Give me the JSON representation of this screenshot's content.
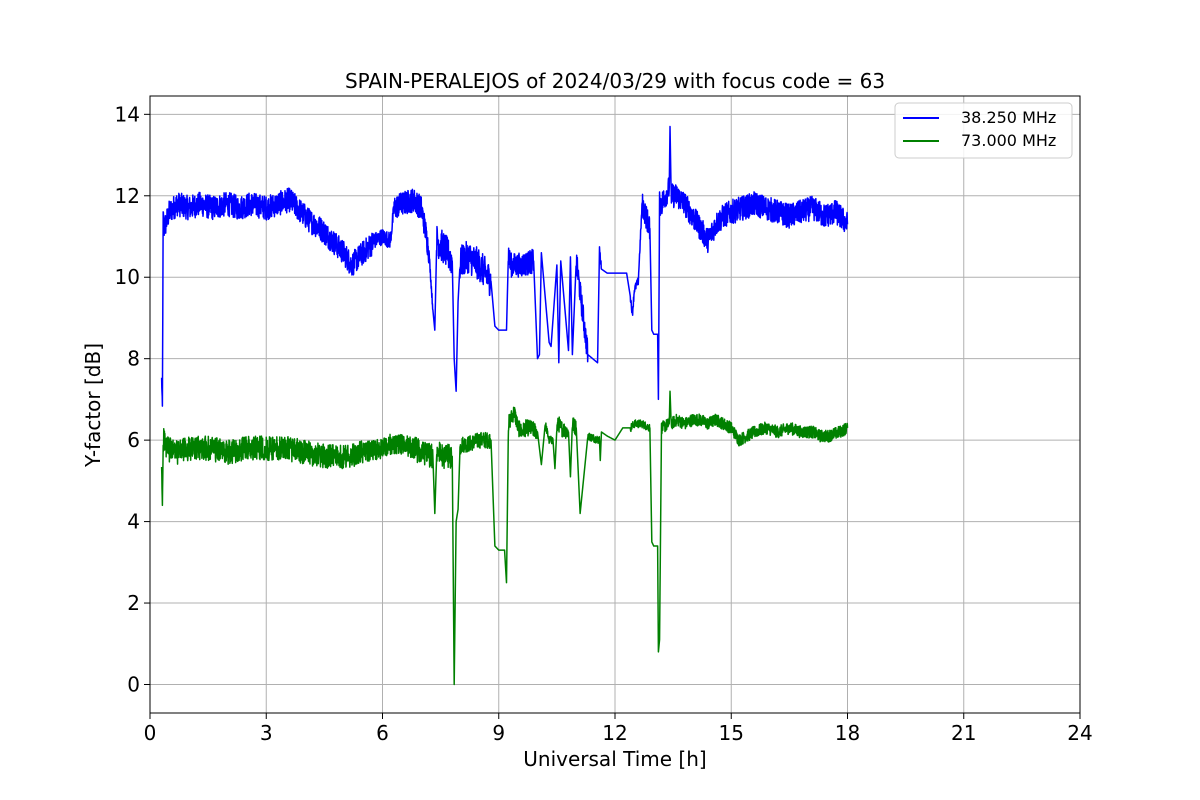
{
  "chart_data": {
    "type": "line",
    "title": "SPAIN-PERALEJOS of 2024/03/29 with focus code = 63",
    "xlabel": "Universal Time [h]",
    "ylabel": "Y-factor [dB]",
    "xlim": [
      0,
      24
    ],
    "ylim": [
      -0.7,
      14.45
    ],
    "xticks": [
      "0",
      "3",
      "6",
      "9",
      "12",
      "15",
      "18",
      "21",
      "24"
    ],
    "yticks": [
      "0",
      "2",
      "4",
      "6",
      "8",
      "10",
      "12",
      "14"
    ],
    "grid": true,
    "legend_position": "top-right",
    "series": [
      {
        "name": "38.250 MHz",
        "color": "#0000ff",
        "x": [
          0.3,
          0.32,
          0.34,
          0.36,
          0.4,
          0.5,
          0.7,
          1.0,
          1.3,
          1.6,
          2.0,
          2.3,
          2.6,
          3.0,
          3.3,
          3.6,
          3.9,
          4.1,
          4.4,
          4.7,
          5.0,
          5.2,
          5.5,
          5.8,
          6.0,
          6.2,
          6.3,
          6.5,
          6.8,
          7.0,
          7.1,
          7.2,
          7.3,
          7.35,
          7.4,
          7.6,
          7.8,
          7.85,
          7.9,
          7.95,
          8.0,
          8.05,
          8.2,
          8.5,
          8.8,
          8.9,
          9.0,
          9.2,
          9.25,
          9.3,
          9.6,
          9.9,
          10.0,
          10.05,
          10.1,
          10.3,
          10.35,
          10.5,
          10.55,
          10.6,
          10.8,
          10.85,
          10.9,
          11.0,
          11.3,
          11.55,
          11.6,
          11.65,
          11.8,
          11.9,
          12.0,
          12.3,
          12.4,
          12.45,
          12.5,
          12.6,
          12.7,
          12.9,
          12.95,
          13.0,
          13.1,
          13.12,
          13.15,
          13.2,
          13.4,
          13.42,
          13.45,
          13.6,
          13.8,
          14.0,
          14.2,
          14.4,
          14.6,
          14.8,
          15.0,
          15.3,
          15.6,
          15.9,
          16.2,
          16.5,
          16.8,
          17.1,
          17.4,
          17.7,
          18.0
        ],
        "y": [
          7.5,
          6.8,
          11.5,
          11.2,
          11.3,
          11.6,
          11.8,
          11.7,
          11.8,
          11.7,
          11.8,
          11.7,
          11.8,
          11.7,
          11.8,
          11.9,
          11.6,
          11.4,
          11.2,
          10.9,
          10.6,
          10.3,
          10.6,
          10.9,
          11.0,
          10.9,
          11.7,
          11.8,
          11.9,
          11.7,
          11.2,
          10.6,
          9.2,
          8.7,
          10.9,
          10.7,
          10.4,
          8.0,
          7.2,
          9.4,
          10.3,
          10.4,
          10.5,
          10.3,
          9.9,
          8.8,
          8.7,
          8.7,
          10.6,
          10.3,
          10.3,
          10.4,
          8.0,
          8.1,
          10.6,
          8.4,
          8.3,
          10.3,
          7.9,
          10.4,
          8.2,
          10.5,
          8.1,
          10.4,
          8.1,
          7.9,
          10.7,
          10.2,
          10.1,
          10.1,
          10.1,
          10.1,
          9.5,
          9.1,
          9.7,
          9.9,
          11.8,
          11.2,
          8.7,
          8.6,
          8.6,
          7.0,
          11.8,
          11.8,
          12.2,
          13.7,
          12.0,
          12.0,
          11.8,
          11.5,
          11.2,
          10.9,
          11.3,
          11.5,
          11.6,
          11.7,
          11.8,
          11.7,
          11.6,
          11.5,
          11.6,
          11.7,
          11.5,
          11.6,
          11.3
        ],
        "amplitude": [
          0.1,
          0.1,
          0.25,
          0.3,
          0.3,
          0.3,
          0.3,
          0.3,
          0.3,
          0.3,
          0.3,
          0.3,
          0.3,
          0.3,
          0.3,
          0.3,
          0.3,
          0.3,
          0.3,
          0.3,
          0.3,
          0.3,
          0.3,
          0.3,
          0.2,
          0.2,
          0.3,
          0.3,
          0.3,
          0.3,
          0.3,
          0.3,
          0.1,
          0.0,
          0.4,
          0.4,
          0.4,
          0.0,
          0.0,
          0.0,
          0.4,
          0.4,
          0.4,
          0.4,
          0.4,
          0.0,
          0.0,
          0.0,
          0.3,
          0.3,
          0.3,
          0.3,
          0.0,
          0.0,
          0.3,
          0.0,
          0.0,
          0.3,
          0.0,
          0.3,
          0.0,
          0.3,
          0.0,
          0.3,
          0.3,
          0.0,
          0.2,
          0.1,
          0.0,
          0.0,
          0.0,
          0.0,
          0.1,
          0.1,
          0.1,
          0.1,
          0.3,
          0.3,
          0.0,
          0.0,
          0.0,
          0.0,
          0.3,
          0.3,
          0.3,
          0.0,
          0.3,
          0.3,
          0.3,
          0.3,
          0.3,
          0.3,
          0.3,
          0.3,
          0.3,
          0.3,
          0.3,
          0.3,
          0.3,
          0.3,
          0.3,
          0.3,
          0.3,
          0.3,
          0.3
        ]
      },
      {
        "name": "73.000 MHz",
        "color": "#008000",
        "x": [
          0.3,
          0.32,
          0.34,
          0.36,
          0.4,
          0.7,
          1.0,
          1.5,
          2.0,
          2.5,
          3.0,
          3.5,
          4.0,
          4.5,
          5.0,
          5.5,
          6.0,
          6.2,
          6.5,
          6.8,
          7.0,
          7.3,
          7.35,
          7.4,
          7.6,
          7.8,
          7.85,
          7.9,
          7.95,
          8.0,
          8.05,
          8.2,
          8.5,
          8.8,
          8.9,
          9.0,
          9.15,
          9.2,
          9.25,
          9.3,
          9.4,
          9.5,
          9.6,
          9.7,
          9.8,
          10.0,
          10.1,
          10.2,
          10.3,
          10.4,
          10.45,
          10.5,
          10.55,
          10.6,
          10.8,
          10.85,
          10.9,
          11.0,
          11.1,
          11.3,
          11.6,
          11.62,
          11.65,
          11.8,
          12.0,
          12.2,
          12.4,
          12.5,
          12.7,
          12.9,
          12.95,
          13.0,
          13.1,
          13.12,
          13.15,
          13.2,
          13.4,
          13.42,
          13.45,
          13.6,
          13.8,
          14.0,
          14.2,
          14.4,
          14.6,
          14.8,
          15.0,
          15.2,
          15.4,
          15.6,
          15.9,
          16.2,
          16.5,
          16.8,
          17.1,
          17.3,
          17.5,
          17.8,
          18.0
        ],
        "y": [
          5.3,
          4.4,
          5.9,
          6.1,
          5.8,
          5.7,
          5.8,
          5.8,
          5.7,
          5.8,
          5.8,
          5.8,
          5.7,
          5.6,
          5.6,
          5.7,
          5.8,
          5.9,
          5.9,
          5.8,
          5.7,
          5.6,
          4.2,
          5.7,
          5.6,
          5.6,
          0.0,
          4.0,
          4.3,
          5.8,
          5.9,
          5.9,
          6.0,
          6.0,
          3.4,
          3.3,
          3.3,
          2.5,
          6.4,
          6.5,
          6.7,
          6.3,
          6.2,
          6.3,
          6.3,
          6.2,
          5.4,
          6.4,
          6.0,
          6.0,
          5.3,
          6.3,
          6.4,
          6.3,
          6.2,
          5.1,
          6.4,
          6.3,
          4.2,
          6.1,
          6.0,
          5.5,
          6.2,
          6.1,
          6.0,
          6.3,
          6.3,
          6.4,
          6.4,
          6.3,
          3.5,
          3.4,
          3.4,
          0.8,
          1.1,
          6.3,
          6.4,
          7.2,
          6.4,
          6.5,
          6.4,
          6.5,
          6.5,
          6.4,
          6.5,
          6.4,
          6.3,
          6.0,
          6.1,
          6.2,
          6.3,
          6.2,
          6.3,
          6.2,
          6.2,
          6.1,
          6.1,
          6.2,
          6.3
        ],
        "amplitude": [
          0.1,
          0.1,
          0.25,
          0.3,
          0.3,
          0.3,
          0.3,
          0.3,
          0.3,
          0.3,
          0.3,
          0.3,
          0.3,
          0.3,
          0.3,
          0.3,
          0.25,
          0.25,
          0.25,
          0.3,
          0.3,
          0.3,
          0.0,
          0.3,
          0.3,
          0.3,
          0.0,
          0.0,
          0.0,
          0.2,
          0.2,
          0.2,
          0.2,
          0.2,
          0.0,
          0.0,
          0.0,
          0.0,
          0.2,
          0.2,
          0.2,
          0.2,
          0.2,
          0.2,
          0.2,
          0.2,
          0.0,
          0.2,
          0.1,
          0.1,
          0.0,
          0.2,
          0.2,
          0.2,
          0.2,
          0.0,
          0.2,
          0.2,
          0.0,
          0.1,
          0.1,
          0.0,
          0.1,
          0.0,
          0.0,
          0.0,
          0.1,
          0.1,
          0.1,
          0.1,
          0.0,
          0.0,
          0.0,
          0.0,
          0.0,
          0.15,
          0.15,
          0.0,
          0.15,
          0.15,
          0.15,
          0.15,
          0.15,
          0.15,
          0.15,
          0.15,
          0.15,
          0.15,
          0.15,
          0.15,
          0.15,
          0.15,
          0.15,
          0.15,
          0.15,
          0.15,
          0.15,
          0.15,
          0.15
        ]
      }
    ]
  }
}
